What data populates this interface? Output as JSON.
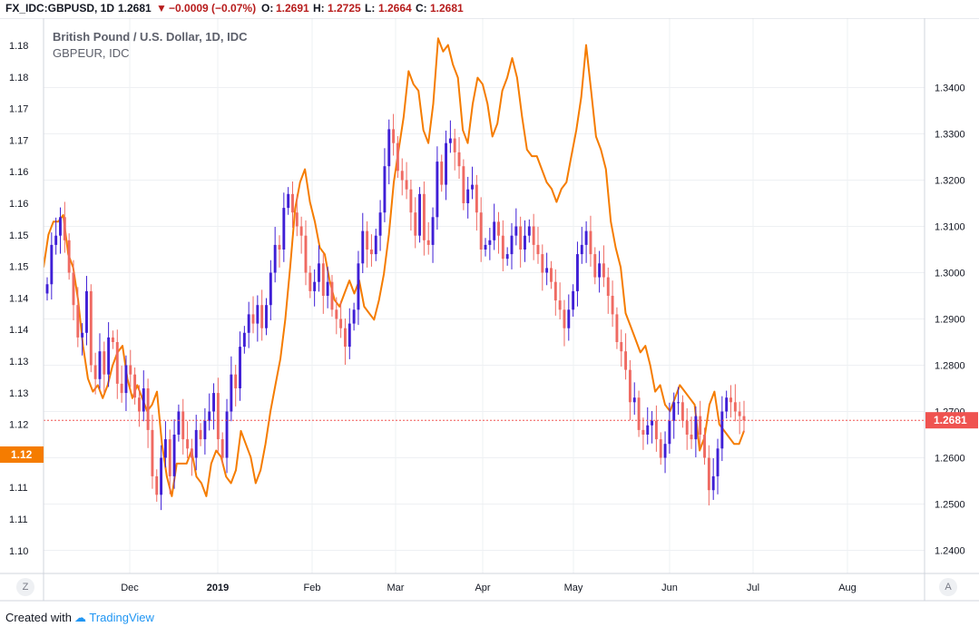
{
  "header": {
    "symbol": "FX_IDC:GBPUSD, 1D",
    "last": "1.2681",
    "change": "−0.0009 (−0.07%)",
    "o_label": "O:",
    "o_value": "1.2691",
    "h_label": "H:",
    "h_value": "1.2725",
    "l_label": "L:",
    "l_value": "1.2664",
    "c_label": "C:",
    "c_value": "1.2681",
    "down_color": "#b71c1c"
  },
  "legend": {
    "main": "British Pound / U.S. Dollar, 1D, IDC",
    "compare": "GBPEUR, IDC"
  },
  "footer": {
    "created_with": "Created with",
    "brand": "TradingView",
    "left_button": "Z",
    "right_button": "A"
  },
  "chart_data": {
    "type": "line",
    "title": "British Pound / U.S. Dollar, 1D, IDC",
    "x_ticks": [
      "Dec",
      "2019",
      "Feb",
      "Mar",
      "Apr",
      "May",
      "Jun",
      "Jul",
      "Aug"
    ],
    "left_axis": {
      "label": "GBPEUR",
      "ticks": [
        "1.18",
        "1.18",
        "1.17",
        "1.17",
        "1.16",
        "1.16",
        "1.15",
        "1.15",
        "1.14",
        "1.14",
        "1.13",
        "1.13",
        "1.12",
        "1.12",
        "1.11",
        "1.11",
        "1.10"
      ],
      "last_value_label": "1.12",
      "color": "#f57c00"
    },
    "right_axis": {
      "label": "GBPUSD",
      "ticks": [
        "1.3400",
        "1.3300",
        "1.3200",
        "1.3100",
        "1.3000",
        "1.2900",
        "1.2800",
        "1.2700",
        "1.2600",
        "1.2500",
        "1.2400"
      ],
      "last_value_label": "1.2681",
      "ylim": [
        1.235,
        1.355
      ],
      "color": "#ef5350"
    },
    "last_price": 1.2681,
    "colors": {
      "up": "#3f1fd6",
      "down": "#ef6a62",
      "compare": "#f57c00",
      "grid": "#eef0f3"
    },
    "series": [
      {
        "name": "GBPUSD",
        "close": [
          1.2975,
          1.306,
          1.308,
          1.312,
          1.307,
          1.3,
          1.293,
          1.286,
          1.287,
          1.296,
          1.28,
          1.277,
          1.283,
          1.278,
          1.286,
          1.285,
          1.276,
          1.274,
          1.28,
          1.278,
          1.273,
          1.27,
          1.275,
          1.266,
          1.256,
          1.252,
          1.26,
          1.264,
          1.256,
          1.265,
          1.27,
          1.264,
          1.262,
          1.26,
          1.266,
          1.264,
          1.268,
          1.27,
          1.274,
          1.264,
          1.26,
          1.27,
          1.278,
          1.275,
          1.284,
          1.287,
          1.291,
          1.289,
          1.293,
          1.288,
          1.293,
          1.3,
          1.306,
          1.305,
          1.314,
          1.317,
          1.313,
          1.31,
          1.308,
          1.3,
          1.296,
          1.298,
          1.302,
          1.295,
          1.298,
          1.292,
          1.29,
          1.288,
          1.284,
          1.289,
          1.292,
          1.302,
          1.309,
          1.305,
          1.304,
          1.308,
          1.313,
          1.323,
          1.331,
          1.328,
          1.322,
          1.32,
          1.318,
          1.313,
          1.308,
          1.317,
          1.307,
          1.306,
          1.312,
          1.324,
          1.319,
          1.328,
          1.329,
          1.326,
          1.323,
          1.315,
          1.318,
          1.319,
          1.313,
          1.305,
          1.306,
          1.307,
          1.311,
          1.308,
          1.303,
          1.304,
          1.308,
          1.31,
          1.305,
          1.308,
          1.31,
          1.306,
          1.304,
          1.3,
          1.301,
          1.298,
          1.294,
          1.292,
          1.288,
          1.292,
          1.296,
          1.304,
          1.306,
          1.309,
          1.304,
          1.299,
          1.302,
          1.299,
          1.295,
          1.291,
          1.285,
          1.283,
          1.279,
          1.272,
          1.273,
          1.266,
          1.265,
          1.267,
          1.268,
          1.264,
          1.26,
          1.263,
          1.268,
          1.272,
          1.272,
          1.268,
          1.265,
          1.264,
          1.269,
          1.265,
          1.26,
          1.253,
          1.256,
          1.262,
          1.27,
          1.273,
          1.272,
          1.27,
          1.269,
          1.2681
        ]
      },
      {
        "name": "GBPEUR",
        "values": [
          1.145,
          1.15,
          1.152,
          1.152,
          1.153,
          1.147,
          1.145,
          1.14,
          1.133,
          1.128,
          1.126,
          1.127,
          1.125,
          1.127,
          1.13,
          1.132,
          1.133,
          1.128,
          1.125,
          1.127,
          1.125,
          1.123,
          1.124,
          1.126,
          1.118,
          1.113,
          1.11,
          1.115,
          1.115,
          1.115,
          1.117,
          1.113,
          1.112,
          1.11,
          1.115,
          1.117,
          1.116,
          1.113,
          1.112,
          1.114,
          1.12,
          1.118,
          1.116,
          1.112,
          1.114,
          1.118,
          1.123,
          1.127,
          1.131,
          1.137,
          1.145,
          1.154,
          1.158,
          1.16,
          1.155,
          1.152,
          1.148,
          1.147,
          1.143,
          1.14,
          1.139,
          1.141,
          1.143,
          1.141,
          1.143,
          1.139,
          1.138,
          1.137,
          1.14,
          1.144,
          1.15,
          1.158,
          1.163,
          1.168,
          1.175,
          1.173,
          1.172,
          1.166,
          1.164,
          1.17,
          1.18,
          1.178,
          1.179,
          1.176,
          1.174,
          1.166,
          1.164,
          1.17,
          1.174,
          1.173,
          1.17,
          1.165,
          1.167,
          1.172,
          1.174,
          1.177,
          1.174,
          1.168,
          1.163,
          1.162,
          1.162,
          1.16,
          1.158,
          1.157,
          1.155,
          1.157,
          1.158,
          1.162,
          1.166,
          1.171,
          1.179,
          1.172,
          1.165,
          1.163,
          1.16,
          1.152,
          1.148,
          1.145,
          1.138,
          1.136,
          1.134,
          1.132,
          1.133,
          1.13,
          1.126,
          1.127,
          1.124,
          1.123,
          1.125,
          1.127,
          1.126,
          1.125,
          1.124,
          1.117,
          1.119,
          1.124,
          1.126,
          1.121,
          1.12,
          1.119,
          1.118,
          1.118,
          1.12
        ]
      }
    ]
  }
}
